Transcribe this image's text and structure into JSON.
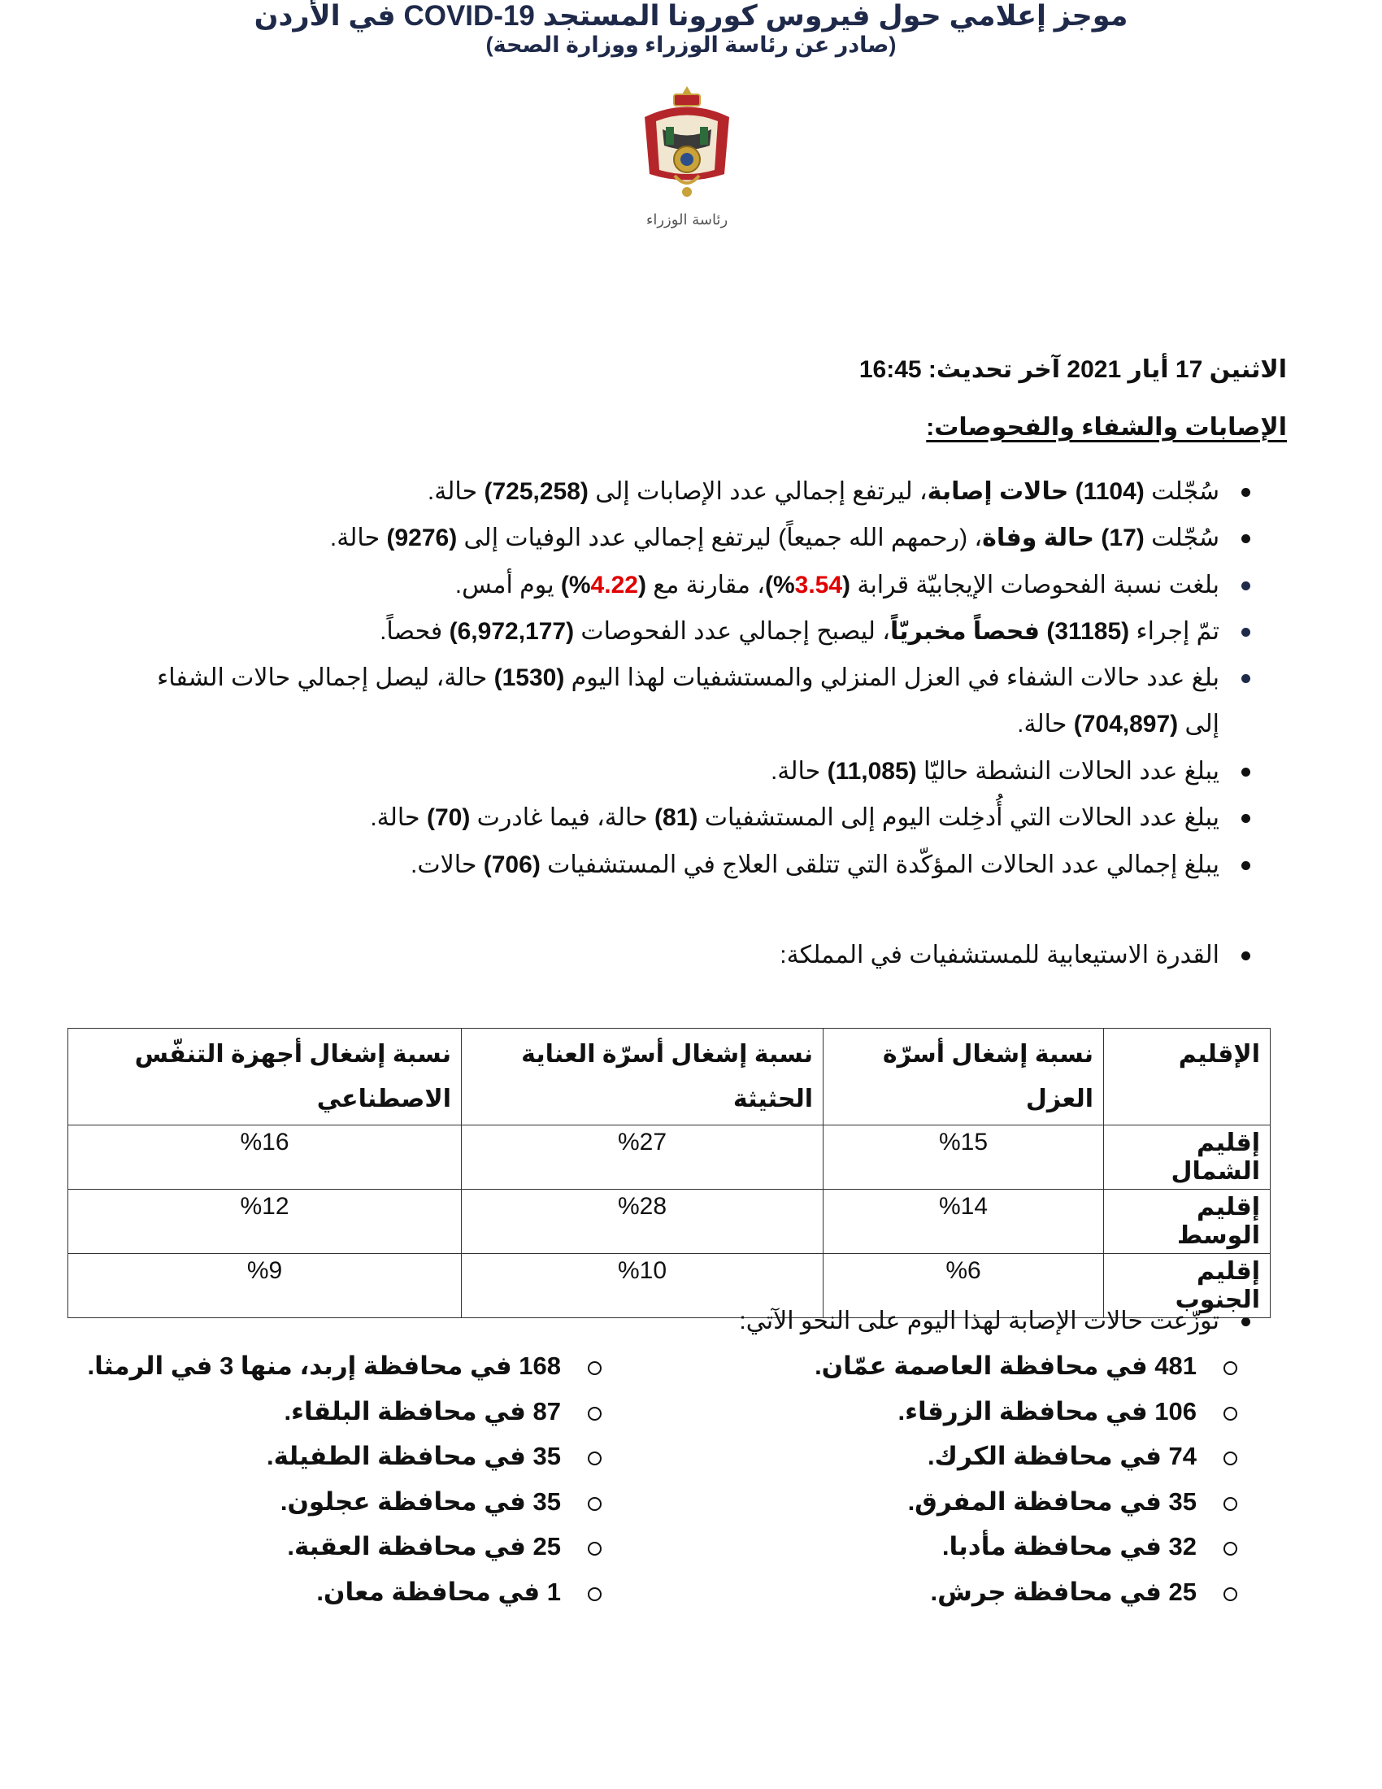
{
  "logo": {
    "text": "رئاسة الوزراء",
    "colors": {
      "red": "#b5262b",
      "gold": "#c9a23a",
      "green": "#2d6b3a"
    }
  },
  "header": {
    "title": "موجز إعلامي حول فيروس كورونا المستجد COVID-19 في الأردن",
    "subtitle": "(صادر عن رئاسة الوزراء ووزارة الصحة)",
    "dateline": "الاثنين 17 أيار 2021 آخر تحديث: 16:45",
    "section_heading": "الإصابات والشفاء والفحوصات:"
  },
  "bullets": [
    {
      "pre": "سُجّلت ",
      "b1": "(1104) حالات إصابة",
      "mid": "، ليرتفع إجمالي عدد الإصابات إلى ",
      "b2": "(725,258)",
      "post": " حالة."
    },
    {
      "pre": "سُجّلت ",
      "b1": "(17) حالة وفاة",
      "mid": "، (رحمهم الله جميعاً) ليرتفع إجمالي عدد الوفيات إلى ",
      "b2": "(9276)",
      "post": " حالة."
    },
    {
      "pre": "بلغت نسبة الفحوصات الإيجابيّة قرابة ",
      "v1": "3.54",
      "mid": "، مقارنة مع ",
      "v2": "4.22",
      "post": " يوم أمس."
    },
    {
      "pre": "تمّ إجراء ",
      "b1": "(31185) فحصاً مخبريّاً",
      "mid": "، ليصبح إجمالي عدد الفحوصات ",
      "b2": "(6,972,177)",
      "post": " فحصاً."
    },
    {
      "pre": "بلغ عدد حالات الشفاء في العزل المنزلي والمستشفيات لهذا اليوم ",
      "b1": "(1530)",
      "mid": " حالة، ليصل إجمالي حالات الشفاء",
      "line2_pre": "إلى ",
      "b2": "(704,897)",
      "post": " حالة."
    },
    {
      "pre": "يبلغ عدد الحالات النشطة حاليّا ",
      "b1": "(11,085)",
      "post": " حالة."
    },
    {
      "pre": "يبلغ عدد الحالات التي أُدخِلت اليوم إلى المستشفيات ",
      "b1": "(81)",
      "mid": " حالة، فيما غادرت ",
      "b2": "(70)",
      "post": " حالة."
    },
    {
      "pre": "يبلغ إجمالي عدد الحالات المؤكّدة التي تتلقى العلاج في المستشفيات ",
      "b1": "(706)",
      "post": " حالات."
    }
  ],
  "capacity_bullet": "القدرة الاستيعابية للمستشفيات في المملكة:",
  "table": {
    "headers": [
      "الإقليم",
      "نسبة إشغال أسرّة العزل",
      "نسبة إشغال أسرّة العناية الحثيثة",
      "نسبة إشغال أجهزة التنفّس الاصطناعي"
    ],
    "rows": [
      [
        "إقليم الشمال",
        "%15",
        "%27",
        "%16"
      ],
      [
        "إقليم الوسط",
        "%14",
        "%28",
        "%12"
      ],
      [
        "إقليم الجنوب",
        "%6",
        "%10",
        "%9"
      ]
    ]
  },
  "distribution_bullet": "توزّعت حالات الإصابة لهذا اليوم على النحو الآتي:",
  "distribution_right": [
    "481 في محافظة العاصمة عمّان.",
    "106 في محافظة الزرقاء.",
    "74 في محافظة الكرك.",
    "35 في محافظة المفرق.",
    "32 في محافظة مأدبا.",
    "25 في محافظة جرش."
  ],
  "distribution_left": [
    "168 في محافظة إربد، منها 3 في الرمثا.",
    "87 في محافظة البلقاء.",
    "35 في محافظة الطفيلة.",
    "35 في محافظة عجلون.",
    "25 في محافظة العقبة.",
    "1 في محافظة معان."
  ]
}
